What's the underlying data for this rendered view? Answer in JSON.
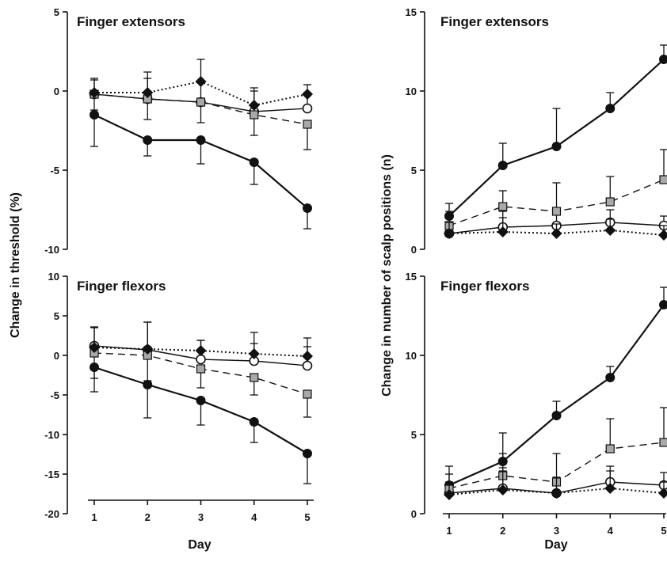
{
  "chart_data": [
    {
      "type": "line",
      "title": "Finger extensors",
      "x": [
        1,
        2,
        3,
        4,
        5
      ],
      "ylim": [
        -10,
        5
      ],
      "yticks": [
        5,
        0,
        -5,
        -10
      ],
      "series": [
        {
          "marker": "filled-circle",
          "line": "solid",
          "values": [
            -1.5,
            -3.1,
            -3.1,
            -4.5,
            -7.4
          ],
          "err": [
            2.0,
            1.0,
            1.5,
            1.4,
            1.3
          ]
        },
        {
          "marker": "open-circle",
          "line": "solid",
          "values": [
            -0.2,
            -0.5,
            -0.7,
            -1.3,
            -1.1
          ],
          "err": [
            0.9,
            1.3,
            1.3,
            1.5,
            1.0
          ]
        },
        {
          "marker": "grey-square",
          "line": "dashed",
          "values": [
            -0.2,
            -0.5,
            -0.7,
            -1.5,
            -2.1
          ],
          "err": [
            1.0,
            1.3,
            1.3,
            1.3,
            1.6
          ]
        },
        {
          "marker": "filled-diamond",
          "line": "dotted",
          "values": [
            -0.1,
            -0.1,
            0.6,
            -0.9,
            -0.2
          ],
          "err": [
            0.9,
            1.3,
            1.4,
            0.9,
            0.6
          ]
        }
      ]
    },
    {
      "type": "line",
      "title": "Finger flexors",
      "x": [
        1,
        2,
        3,
        4,
        5
      ],
      "ylim": [
        -20,
        10
      ],
      "yticks": [
        10,
        5,
        0,
        -5,
        -10,
        -15,
        -20
      ],
      "series": [
        {
          "marker": "filled-circle",
          "line": "solid",
          "values": [
            -1.5,
            -3.7,
            -5.7,
            -8.4,
            -12.4
          ],
          "err": [
            3.1,
            4.2,
            3.1,
            2.6,
            3.8
          ]
        },
        {
          "marker": "open-circle",
          "line": "solid",
          "values": [
            1.2,
            0.7,
            -0.5,
            -0.7,
            -1.3
          ],
          "err": [
            2.4,
            3.5,
            2.4,
            2.2,
            2.4
          ]
        },
        {
          "marker": "grey-square",
          "line": "dashed",
          "values": [
            0.3,
            0.0,
            -1.7,
            -2.8,
            -4.9
          ],
          "err": [
            3.2,
            3.2,
            2.4,
            2.2,
            2.9
          ]
        },
        {
          "marker": "filled-diamond",
          "line": "dotted",
          "values": [
            1.0,
            0.8,
            0.6,
            0.2,
            -0.1
          ],
          "err": [
            2.5,
            3.4,
            1.3,
            2.7,
            2.3
          ]
        }
      ]
    },
    {
      "type": "line",
      "title": "Finger extensors",
      "x": [
        1,
        2,
        3,
        4,
        5
      ],
      "ylim": [
        0,
        15
      ],
      "yticks": [
        15,
        10,
        5,
        0
      ],
      "series": [
        {
          "marker": "filled-circle",
          "line": "solid",
          "values": [
            2.1,
            5.3,
            6.5,
            8.9,
            12.0
          ],
          "err": [
            0.8,
            1.4,
            2.4,
            1.0,
            0.9
          ]
        },
        {
          "marker": "open-circle",
          "line": "solid",
          "values": [
            1.0,
            1.4,
            1.5,
            1.7,
            1.5
          ],
          "err": [
            0.7,
            1.0,
            1.0,
            0.8,
            0.6
          ]
        },
        {
          "marker": "grey-square",
          "line": "dashed",
          "values": [
            1.5,
            2.7,
            2.4,
            3.0,
            4.4
          ],
          "err": [
            0.9,
            1.0,
            1.8,
            1.6,
            1.9
          ]
        },
        {
          "marker": "filled-diamond",
          "line": "dotted",
          "values": [
            1.0,
            1.1,
            1.0,
            1.2,
            0.9
          ],
          "err": [
            0.7,
            0.9,
            0.6,
            0.7,
            0.6
          ]
        }
      ]
    },
    {
      "type": "line",
      "title": "Finger flexors",
      "x": [
        1,
        2,
        3,
        4,
        5
      ],
      "ylim": [
        0,
        15
      ],
      "yticks": [
        15,
        10,
        5,
        0
      ],
      "series": [
        {
          "marker": "filled-circle",
          "line": "solid",
          "values": [
            1.8,
            3.3,
            6.2,
            8.6,
            13.2
          ],
          "err": [
            1.2,
            1.8,
            0.9,
            0.7,
            1.1
          ]
        },
        {
          "marker": "open-circle",
          "line": "solid",
          "values": [
            1.3,
            1.6,
            1.3,
            2.0,
            1.8
          ],
          "err": [
            0.7,
            1.3,
            1.0,
            1.0,
            0.8
          ]
        },
        {
          "marker": "grey-square",
          "line": "dashed",
          "values": [
            1.6,
            2.4,
            2.0,
            4.1,
            4.5
          ],
          "err": [
            0.9,
            1.4,
            1.8,
            1.9,
            2.2
          ]
        },
        {
          "marker": "filled-diamond",
          "line": "dotted",
          "values": [
            1.2,
            1.5,
            1.3,
            1.6,
            1.3
          ],
          "err": [
            0.6,
            1.2,
            1.0,
            1.1,
            0.7
          ]
        }
      ]
    }
  ],
  "labels": {
    "left_ylabel": "Change in threshold (%)",
    "right_ylabel": "Change in number of scalp positions (n)",
    "xlabel_left": "Day",
    "xlabel_right": "Day"
  },
  "colors": {
    "ink": "#111111",
    "square_fill": "#a9a9a9",
    "open_fill": "#ffffff"
  }
}
